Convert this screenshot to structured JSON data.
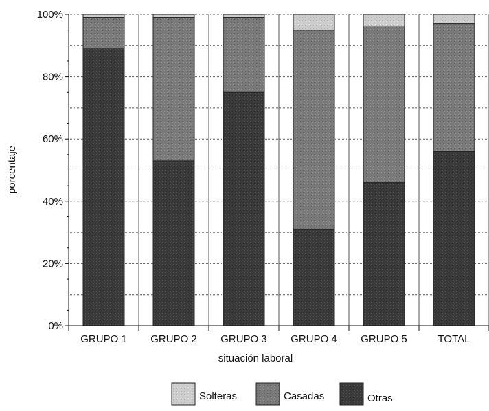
{
  "chart_data": {
    "type": "bar",
    "stacked": true,
    "normalized": true,
    "categories": [
      "GRUPO 1",
      "GRUPO 2",
      "GRUPO 3",
      "GRUPO 4",
      "GRUPO 5",
      "TOTAL"
    ],
    "series": [
      {
        "name": "Otras",
        "values": [
          89,
          53,
          75,
          31,
          46,
          56
        ],
        "color": "#3a3a3a"
      },
      {
        "name": "Casadas",
        "values": [
          10,
          46,
          24,
          64,
          50,
          41
        ],
        "color": "#7a7a7a"
      },
      {
        "name": "Solteras",
        "values": [
          1,
          1,
          1,
          5,
          4,
          3
        ],
        "color": "#c9c9c9"
      }
    ],
    "legend_order": [
      "Solteras",
      "Casadas",
      "Otras"
    ],
    "xlabel": "situación laboral",
    "ylabel": "porcentaje",
    "ylim": [
      0,
      100
    ],
    "yticks": [
      "0%",
      "20%",
      "40%",
      "60%",
      "80%",
      "100%"
    ],
    "grid": true,
    "legend_position": "bottom"
  }
}
